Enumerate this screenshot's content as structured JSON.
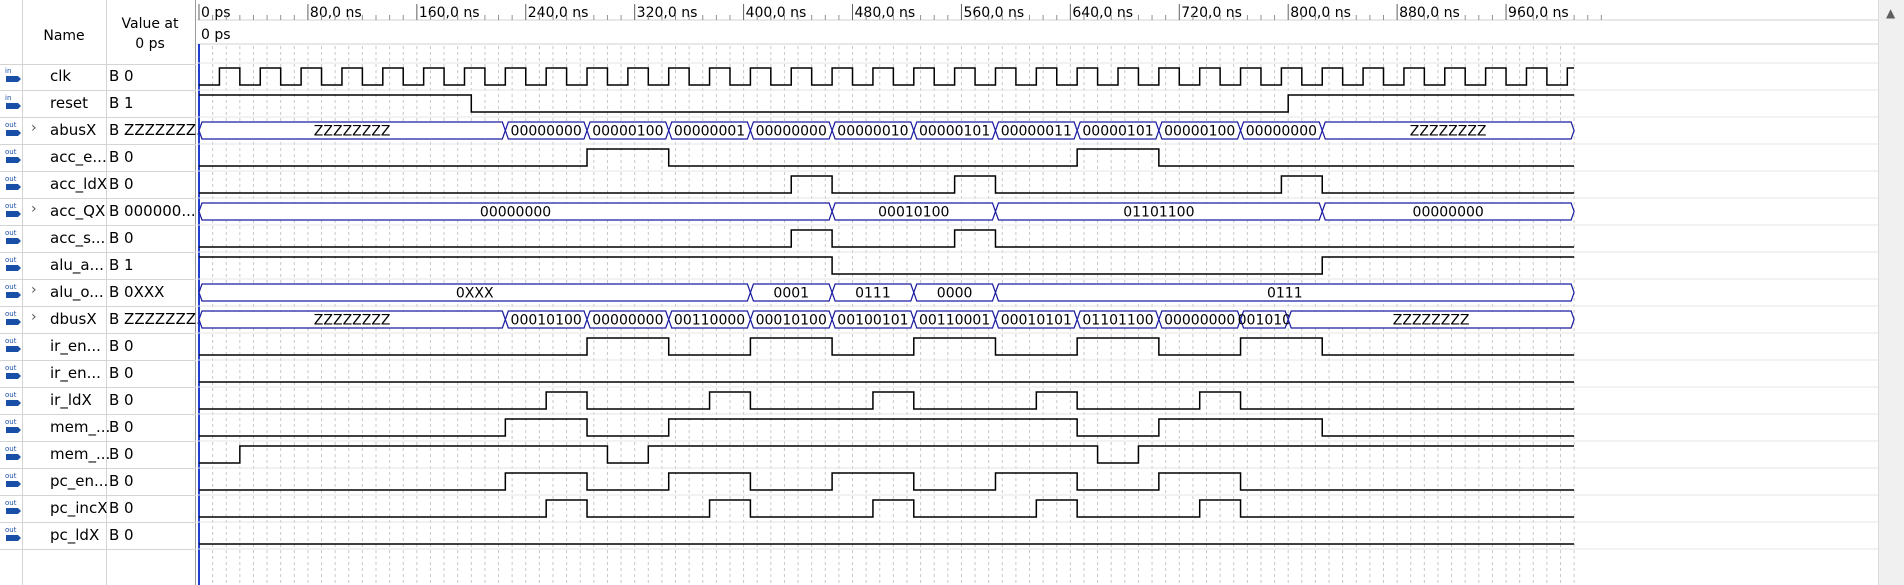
{
  "header": {
    "name_label": "Name",
    "value_label": "Value at",
    "value_time": "0 ps"
  },
  "cursor_label": "0 ps",
  "time_axis": {
    "start_ps": 0,
    "end_ns": 1010,
    "unit": "ns",
    "ticks": [
      {
        "t": 0,
        "label": "0 ps"
      },
      {
        "t": 80,
        "label": "80,0 ns"
      },
      {
        "t": 160,
        "label": "160,0 ns"
      },
      {
        "t": 240,
        "label": "240,0 ns"
      },
      {
        "t": 320,
        "label": "320,0 ns"
      },
      {
        "t": 400,
        "label": "400,0 ns"
      },
      {
        "t": 480,
        "label": "480,0 ns"
      },
      {
        "t": 560,
        "label": "560,0 ns"
      },
      {
        "t": 640,
        "label": "640,0 ns"
      },
      {
        "t": 720,
        "label": "720,0 ns"
      },
      {
        "t": 800,
        "label": "800,0 ns"
      },
      {
        "t": 880,
        "label": "880,0 ns"
      },
      {
        "t": 960,
        "label": "960,0 ns"
      }
    ]
  },
  "clock_period_ns": 30,
  "signals": [
    {
      "name": "clk",
      "dir": "in",
      "value": "B 0",
      "kind": "clock"
    },
    {
      "name": "reset",
      "dir": "in",
      "value": "B 1",
      "kind": "bit",
      "segs": [
        [
          0,
          1
        ],
        [
          200,
          0
        ],
        [
          800,
          1
        ]
      ]
    },
    {
      "name": "abusX",
      "dir": "out",
      "value": "B ZZZZZZZ...",
      "kind": "bus",
      "expand": true,
      "segs": [
        [
          0,
          "ZZZZZZZZ"
        ],
        [
          225,
          "00000000"
        ],
        [
          285,
          "00000100"
        ],
        [
          345,
          "00000001"
        ],
        [
          405,
          "00000000"
        ],
        [
          465,
          "00000010"
        ],
        [
          525,
          "00000101"
        ],
        [
          585,
          "00000011"
        ],
        [
          645,
          "00000101"
        ],
        [
          705,
          "00000100"
        ],
        [
          765,
          "00000000"
        ],
        [
          825,
          "ZZZZZZZZ"
        ]
      ]
    },
    {
      "name": "acc_e...",
      "dir": "out",
      "value": "B 0",
      "kind": "bit",
      "segs": [
        [
          0,
          0
        ],
        [
          285,
          1
        ],
        [
          345,
          0
        ],
        [
          645,
          1
        ],
        [
          705,
          0
        ]
      ]
    },
    {
      "name": "acc_ldX",
      "dir": "out",
      "value": "B 0",
      "kind": "bit",
      "segs": [
        [
          0,
          0
        ],
        [
          435,
          1
        ],
        [
          465,
          0
        ],
        [
          555,
          1
        ],
        [
          585,
          0
        ],
        [
          795,
          1
        ],
        [
          825,
          0
        ]
      ]
    },
    {
      "name": "acc_QX",
      "dir": "out",
      "value": "B 000000...",
      "kind": "bus",
      "expand": true,
      "segs": [
        [
          0,
          "00000000"
        ],
        [
          465,
          "00010100"
        ],
        [
          585,
          "01101100"
        ],
        [
          825,
          "00000000"
        ]
      ]
    },
    {
      "name": "acc_s...",
      "dir": "out",
      "value": "B 0",
      "kind": "bit",
      "segs": [
        [
          0,
          0
        ],
        [
          435,
          1
        ],
        [
          465,
          0
        ],
        [
          555,
          1
        ],
        [
          585,
          0
        ]
      ]
    },
    {
      "name": "alu_a...",
      "dir": "out",
      "value": "B 1",
      "kind": "bit",
      "segs": [
        [
          0,
          1
        ],
        [
          465,
          0
        ],
        [
          825,
          1
        ]
      ]
    },
    {
      "name": "alu_o...",
      "dir": "out",
      "value": "B 0XXX",
      "kind": "bus",
      "expand": true,
      "segs": [
        [
          0,
          "0XXX"
        ],
        [
          405,
          "0001"
        ],
        [
          465,
          "0111"
        ],
        [
          525,
          "0000"
        ],
        [
          585,
          "0111"
        ]
      ]
    },
    {
      "name": "dbusX",
      "dir": "out",
      "value": "B ZZZZZZZ...",
      "kind": "bus",
      "expand": true,
      "segs": [
        [
          0,
          "ZZZZZZZZ"
        ],
        [
          225,
          "00010100"
        ],
        [
          285,
          "00000000"
        ],
        [
          345,
          "00110000"
        ],
        [
          405,
          "00010100"
        ],
        [
          465,
          "00100101"
        ],
        [
          525,
          "00110001"
        ],
        [
          585,
          "00010101"
        ],
        [
          645,
          "01101100"
        ],
        [
          705,
          "00000000"
        ],
        [
          765,
          "001010"
        ],
        [
          800,
          "ZZZZZZZZ"
        ]
      ]
    },
    {
      "name": "ir_en...",
      "dir": "out",
      "value": "B 0",
      "kind": "bit",
      "segs": [
        [
          0,
          0
        ],
        [
          285,
          1
        ],
        [
          345,
          0
        ],
        [
          405,
          1
        ],
        [
          465,
          0
        ],
        [
          525,
          1
        ],
        [
          585,
          0
        ],
        [
          645,
          1
        ],
        [
          705,
          0
        ],
        [
          765,
          1
        ],
        [
          825,
          0
        ]
      ]
    },
    {
      "name": "ir_en...",
      "dir": "out",
      "value": "B 0",
      "kind": "bit",
      "segs": [
        [
          0,
          0
        ]
      ]
    },
    {
      "name": "ir_ldX",
      "dir": "out",
      "value": "B 0",
      "kind": "bit",
      "segs": [
        [
          0,
          0
        ],
        [
          255,
          1
        ],
        [
          285,
          0
        ],
        [
          375,
          1
        ],
        [
          405,
          0
        ],
        [
          495,
          1
        ],
        [
          525,
          0
        ],
        [
          615,
          1
        ],
        [
          645,
          0
        ],
        [
          735,
          1
        ],
        [
          765,
          0
        ]
      ]
    },
    {
      "name": "mem_...",
      "dir": "out",
      "value": "B 0",
      "kind": "bit",
      "segs": [
        [
          0,
          0
        ],
        [
          225,
          1
        ],
        [
          285,
          0
        ],
        [
          345,
          1
        ],
        [
          645,
          0
        ],
        [
          705,
          1
        ],
        [
          825,
          0
        ]
      ]
    },
    {
      "name": "mem_...",
      "dir": "out",
      "value": "B 0",
      "kind": "bit",
      "segs": [
        [
          0,
          0
        ],
        [
          30,
          1
        ],
        [
          300,
          0
        ],
        [
          330,
          1
        ],
        [
          660,
          0
        ],
        [
          690,
          1
        ]
      ]
    },
    {
      "name": "pc_en...",
      "dir": "out",
      "value": "B 0",
      "kind": "bit",
      "segs": [
        [
          0,
          0
        ],
        [
          225,
          1
        ],
        [
          285,
          0
        ],
        [
          345,
          1
        ],
        [
          405,
          0
        ],
        [
          465,
          1
        ],
        [
          525,
          0
        ],
        [
          585,
          1
        ],
        [
          645,
          0
        ],
        [
          705,
          1
        ],
        [
          765,
          0
        ]
      ]
    },
    {
      "name": "pc_incX",
      "dir": "out",
      "value": "B 0",
      "kind": "bit",
      "segs": [
        [
          0,
          0
        ],
        [
          255,
          1
        ],
        [
          285,
          0
        ],
        [
          375,
          1
        ],
        [
          405,
          0
        ],
        [
          495,
          1
        ],
        [
          525,
          0
        ],
        [
          615,
          1
        ],
        [
          645,
          0
        ],
        [
          735,
          1
        ],
        [
          765,
          0
        ]
      ]
    },
    {
      "name": "pc_ldX",
      "dir": "out",
      "value": "B 0",
      "kind": "bit",
      "segs": [
        [
          0,
          0
        ]
      ]
    }
  ],
  "colors": {
    "wave": "#000000",
    "bus": "#1a1aa0",
    "grid": "#c8c8c8",
    "cursor": "#2040d0",
    "icon_in": "#1a4fa8",
    "icon_out": "#1a4fa8"
  }
}
